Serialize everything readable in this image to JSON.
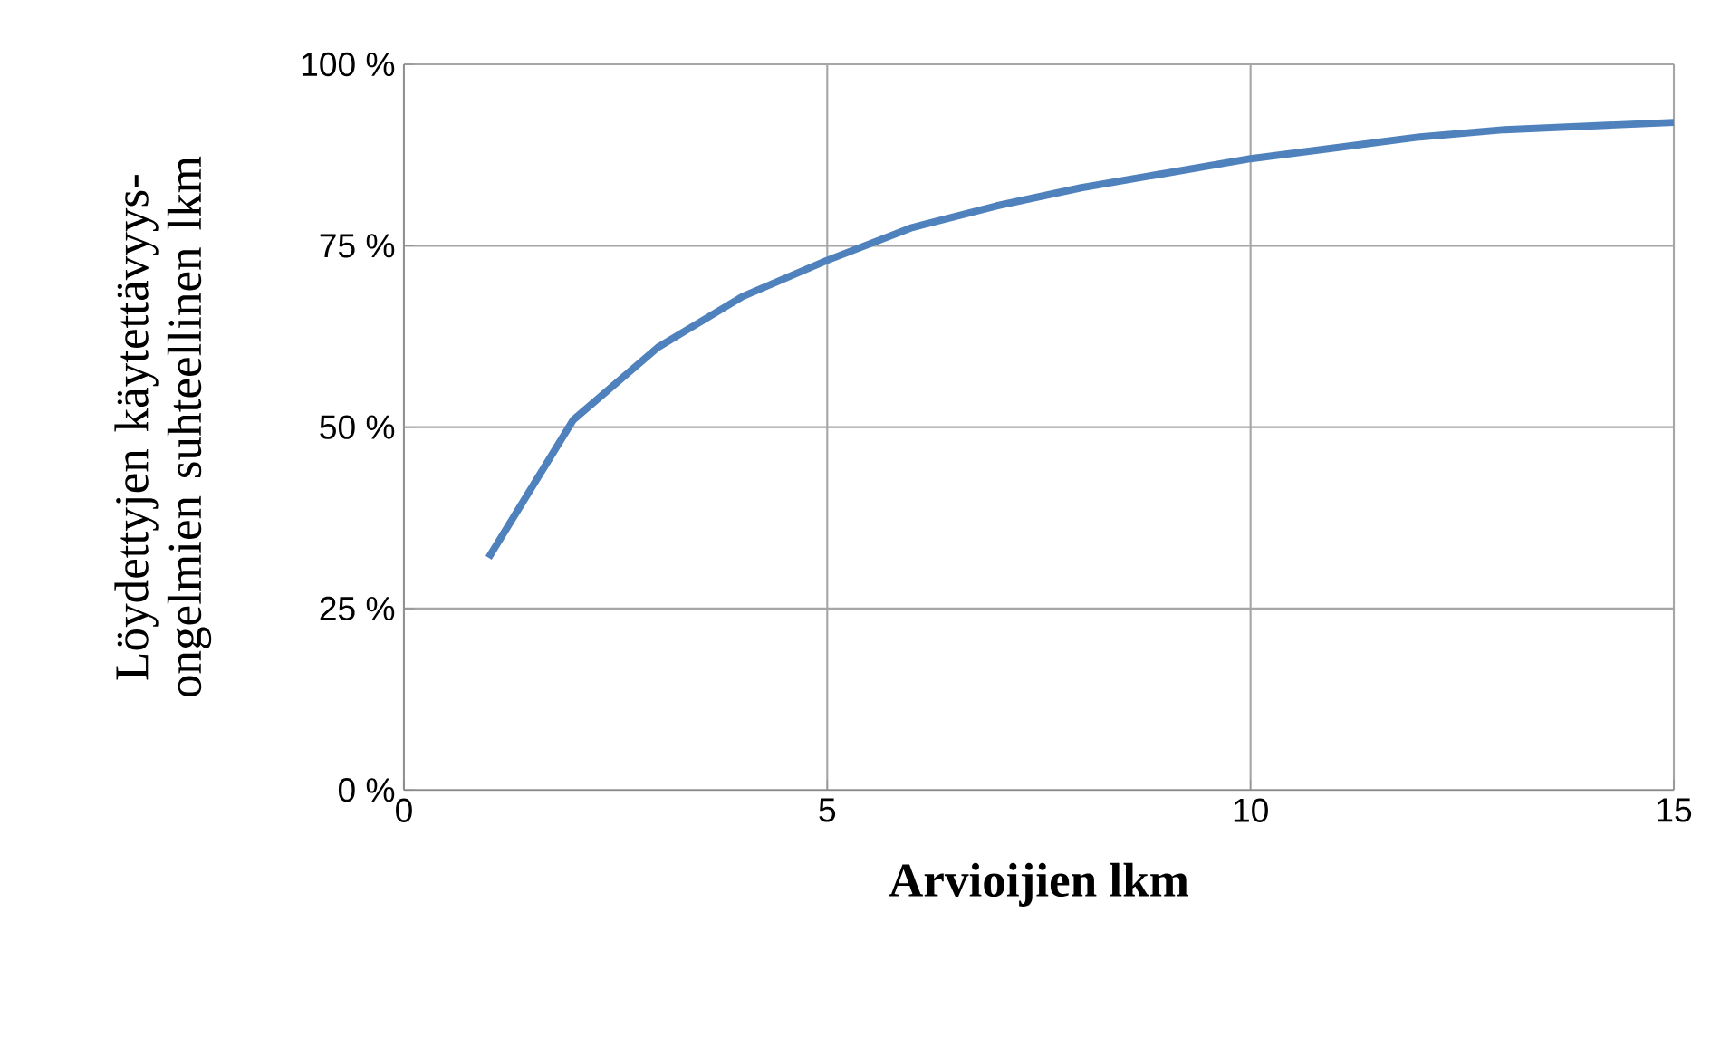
{
  "chart_data": {
    "type": "line",
    "xlabel": "Arvioijien lkm",
    "ylabel": "Löydettyjen käytettävyys-ongelmien suhteellinen lkm",
    "x": [
      1,
      2,
      3,
      4,
      5,
      6,
      7,
      8,
      9,
      10,
      11,
      12,
      13,
      14,
      15
    ],
    "series": [
      {
        "color": "#4f81bd",
        "values": [
          32,
          51,
          61,
          68,
          73,
          77.5,
          80.5,
          83,
          85,
          87,
          88.5,
          90,
          91,
          91.5,
          92
        ]
      }
    ],
    "xlim": [
      0,
      15
    ],
    "xticks": [
      0,
      5,
      10,
      15
    ],
    "ylim": [
      0,
      100
    ],
    "yticks": [
      {
        "value": 0,
        "label": "0 %"
      },
      {
        "value": 25,
        "label": "25 %"
      },
      {
        "value": 50,
        "label": "50 %"
      },
      {
        "value": 75,
        "label": "75 %"
      },
      {
        "value": 100,
        "label": "100 %"
      }
    ],
    "grid": true,
    "marker": "none",
    "line_style": "solid"
  }
}
